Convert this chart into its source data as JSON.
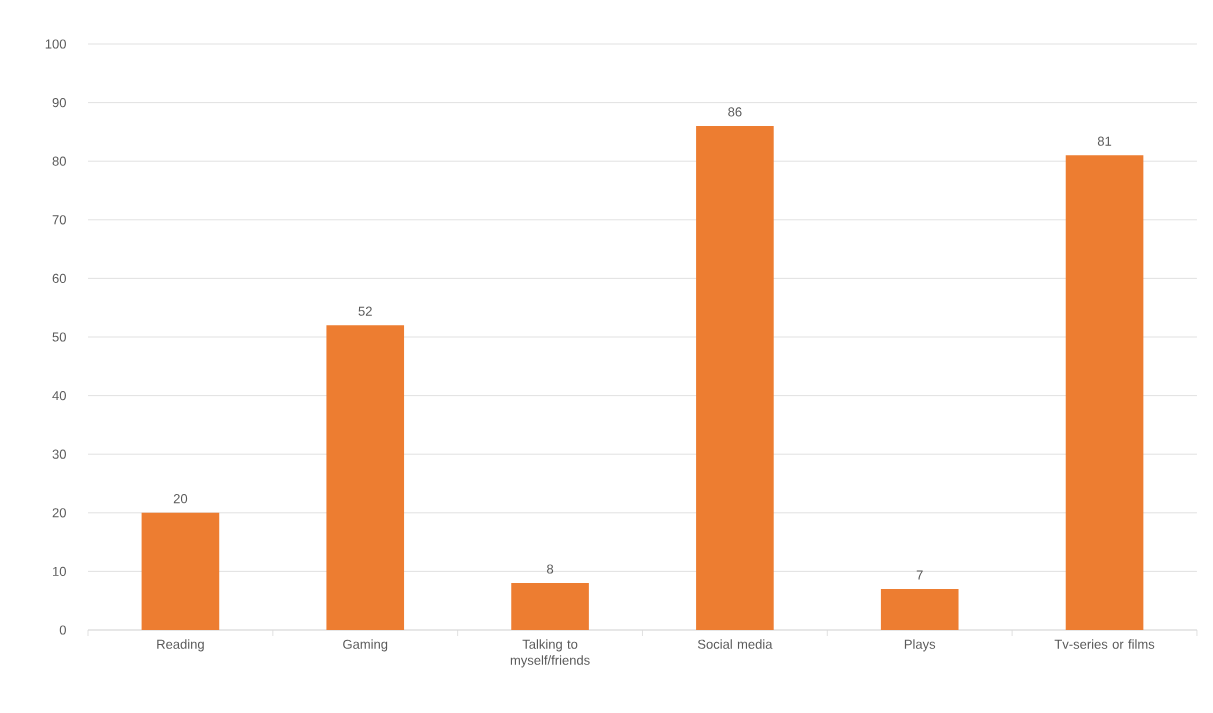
{
  "chart_data": {
    "type": "bar",
    "categories": [
      "Reading",
      "Gaming",
      "Talking to myself/friends",
      "Social media",
      "Plays",
      "Tv-series or films"
    ],
    "values": [
      20,
      52,
      8,
      86,
      7,
      81
    ],
    "color": "#ed7d31",
    "ylim": [
      0,
      100
    ],
    "yticks": [
      0,
      10,
      20,
      30,
      40,
      50,
      60,
      70,
      80,
      90,
      100
    ],
    "grid": "y",
    "data_labels": true
  }
}
